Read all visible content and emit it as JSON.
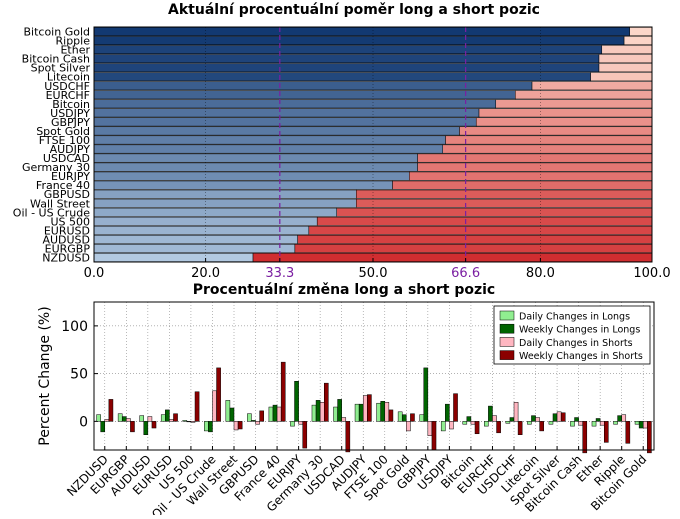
{
  "chart_data": [
    {
      "type": "bar",
      "orientation": "horizontal",
      "stacked": true,
      "title": "Aktuální procentuální poměr long a short pozic",
      "categories": [
        "Bitcoin Gold",
        "Ripple",
        "Ether",
        "Bitcoin Cash",
        "Spot Silver",
        "Litecoin",
        "USDCHF",
        "EURCHF",
        "Bitcoin",
        "USDJPY",
        "GBPJPY",
        "Spot Gold",
        "FTSE 100",
        "AUDJPY",
        "USDCAD",
        "Germany 30",
        "EURJPY",
        "France 40",
        "GBPUSD",
        "Wall Street",
        "Oil - US Crude",
        "US 500",
        "EURUSD",
        "AUDUSD",
        "EURGBP",
        "NZDUSD"
      ],
      "series": [
        {
          "values": [
            96.0,
            95.0,
            91.0,
            90.5,
            90.5,
            89.0,
            78.5,
            75.5,
            72.0,
            69.0,
            68.5,
            65.5,
            63.0,
            62.5,
            58.0,
            58.0,
            56.5,
            53.5,
            47.0,
            47.0,
            43.5,
            40.0,
            38.5,
            36.5,
            36.0,
            28.5
          ]
        },
        {
          "values": [
            4.0,
            5.0,
            9.0,
            9.5,
            9.5,
            11.0,
            21.5,
            24.5,
            28.0,
            31.0,
            31.5,
            34.5,
            37.0,
            37.5,
            42.0,
            42.0,
            43.5,
            46.5,
            53.0,
            53.0,
            56.5,
            60.0,
            61.5,
            63.5,
            64.0,
            71.5
          ]
        }
      ],
      "xlim": [
        0,
        100
      ],
      "xticks": [
        "0.0",
        "20.0",
        "33.3",
        "50.0",
        "66.6",
        "80.0",
        "100.0"
      ],
      "reference_lines": [
        33.3,
        66.6
      ],
      "colors": {
        "long_dark": "#08306b",
        "long_light": "#c6dbef",
        "short_light": "#fee0d2",
        "short_dark": "#cb181d",
        "reference": "#7b1fa2"
      },
      "grid": true
    },
    {
      "type": "bar",
      "title": "Procentuální změna long a short pozic",
      "ylabel": "Percent Change (%)",
      "ylim": [
        -30,
        125
      ],
      "yticks": [
        "0",
        "50",
        "100"
      ],
      "categories": [
        "NZDUSD",
        "EURGBP",
        "AUDUSD",
        "EURUSD",
        "US 500",
        "Oil - US Crude",
        "Wall Street",
        "GBPUSD",
        "France 40",
        "EURJPY",
        "Germany 30",
        "USDCAD",
        "AUDJPY",
        "FTSE 100",
        "Spot Gold",
        "GBPJPY",
        "USDJPY",
        "Bitcoin",
        "EURCHF",
        "USDCHF",
        "Litecoin",
        "Spot Silver",
        "Bitcoin Cash",
        "Ether",
        "Ripple",
        "Bitcoin Gold"
      ],
      "legend_position": "top-right",
      "series": [
        {
          "name": "Daily Changes in Longs",
          "color": "#90ee90",
          "values": [
            7,
            8,
            6,
            7,
            1,
            -10,
            22,
            8,
            15,
            -5,
            17,
            15,
            18,
            19,
            10,
            7,
            -10,
            -3,
            -5,
            -2,
            -3,
            -3,
            -5,
            -5,
            -3,
            -3
          ]
        },
        {
          "name": "Weekly Changes in Longs",
          "color": "#006400",
          "values": [
            -11,
            5,
            -14,
            12,
            0,
            -11,
            14,
            1,
            17,
            42,
            22,
            23,
            18,
            21,
            7,
            56,
            18,
            5,
            16,
            4,
            6,
            8,
            4,
            3,
            6,
            -7
          ]
        },
        {
          "name": "Daily Changes in Shorts",
          "color": "#ffb6c1",
          "values": [
            2,
            3,
            5,
            2,
            -1,
            32,
            -9,
            -3,
            15,
            -3,
            20,
            4,
            27,
            20,
            -10,
            -15,
            -8,
            -3,
            6,
            20,
            4,
            10,
            -4,
            -4,
            7,
            -7
          ]
        },
        {
          "name": "Weekly Changes in Shorts",
          "color": "#8b0000",
          "values": [
            23,
            -11,
            -7,
            8,
            31,
            56,
            -8,
            11,
            62,
            -28,
            40,
            -32,
            28,
            12,
            8,
            -30,
            29,
            -13,
            -12,
            -14,
            -10,
            9,
            -33,
            -22,
            -23,
            -33
          ]
        }
      ],
      "grid": true
    }
  ]
}
